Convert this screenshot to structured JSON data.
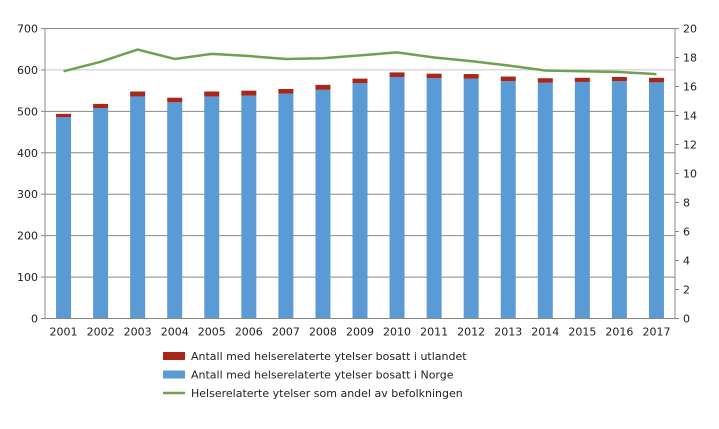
{
  "chart_data": {
    "type": "bar",
    "categories": [
      "2001",
      "2002",
      "2003",
      "2004",
      "2005",
      "2006",
      "2007",
      "2008",
      "2009",
      "2010",
      "2011",
      "2012",
      "2013",
      "2014",
      "2015",
      "2016",
      "2017"
    ],
    "series": [
      {
        "name": "Antall med helserelaterte ytelser bosatt i Norge",
        "type": "stacked-bar",
        "axis": "left",
        "color": "#5b9bd5",
        "values": [
          486,
          508,
          536,
          522,
          536,
          538,
          543,
          552,
          568,
          583,
          580,
          579,
          573,
          569,
          571,
          573,
          570
        ]
      },
      {
        "name": "Antall med helserelaterte ytelser bosatt i utlandet",
        "type": "stacked-bar",
        "axis": "left",
        "color": "#a9271a",
        "values": [
          8,
          10,
          12,
          11,
          12,
          12,
          11,
          12,
          11,
          11,
          11,
          11,
          11,
          11,
          10,
          10,
          11
        ]
      },
      {
        "name": "Helserelaterte ytelser som andel av befolkningen",
        "type": "line",
        "axis": "right",
        "color": "#70a050",
        "values": [
          17.05,
          17.7,
          18.55,
          17.9,
          18.25,
          18.1,
          17.9,
          17.95,
          18.15,
          18.35,
          18.0,
          17.75,
          17.45,
          17.1,
          17.05,
          17.0,
          16.85
        ]
      }
    ],
    "legend": {
      "placement": "bottom",
      "order": [
        1,
        0,
        2
      ]
    },
    "y_left": {
      "lim": [
        0,
        700
      ],
      "ticks": [
        "0",
        "100",
        "200",
        "300",
        "400",
        "500",
        "600",
        "700"
      ]
    },
    "y_right": {
      "lim": [
        0,
        20
      ],
      "ticks": [
        "0",
        "2",
        "4",
        "6",
        "8",
        "10",
        "12",
        "14",
        "16",
        "18",
        "20"
      ]
    },
    "grid": true,
    "title": "",
    "xlabel": "",
    "ylabel": ""
  }
}
